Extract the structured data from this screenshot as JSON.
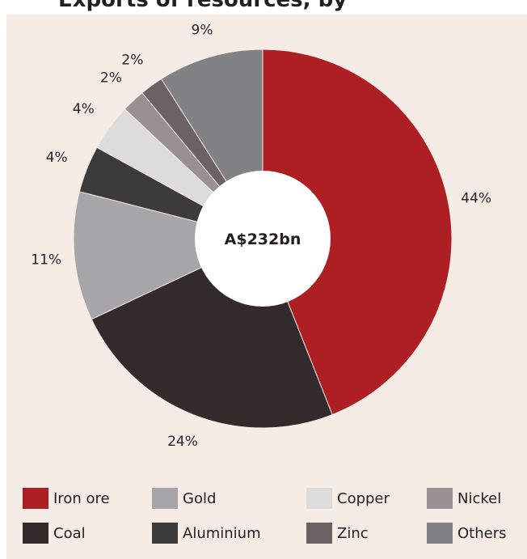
{
  "title": "Exports of resources, by",
  "chart_data": {
    "type": "pie",
    "center_label": "A$232bn",
    "slices": [
      {
        "name": "Iron ore",
        "value": 44,
        "label": "44%",
        "color": "#ae1f24"
      },
      {
        "name": "Coal",
        "value": 24,
        "label": "24%",
        "color": "#332a2b"
      },
      {
        "name": "Gold",
        "value": 11,
        "label": "11%",
        "color": "#a6a5a7"
      },
      {
        "name": "Aluminium",
        "value": 4,
        "label": "4%",
        "color": "#3c3b3c"
      },
      {
        "name": "Copper",
        "value": 4,
        "label": "4%",
        "color": "#dcdcdd"
      },
      {
        "name": "Nickel",
        "value": 2,
        "label": "2%",
        "color": "#9a9092"
      },
      {
        "name": "Zinc",
        "value": 2,
        "label": "2%",
        "color": "#6d6263"
      },
      {
        "name": "Others",
        "value": 9,
        "label": "9%",
        "color": "#808284"
      }
    ],
    "legend_order": [
      "Iron ore",
      "Gold",
      "Copper",
      "Nickel",
      "Coal",
      "Aluminium",
      "Zinc",
      "Others"
    ],
    "legend_position": "bottom"
  }
}
